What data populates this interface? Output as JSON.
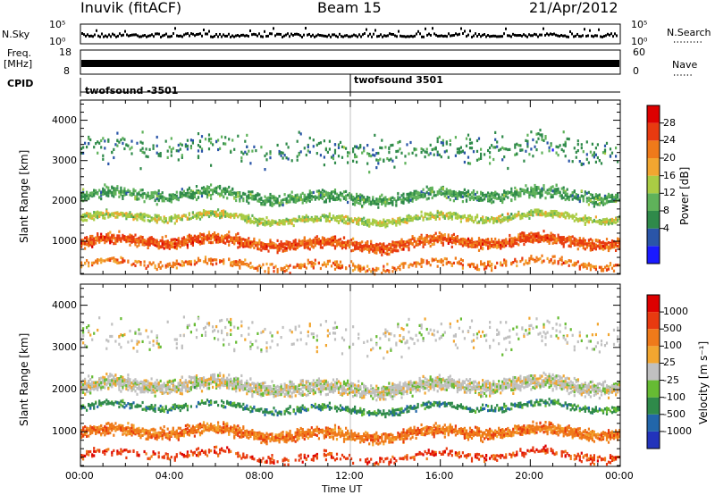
{
  "header": {
    "station": "Inuvik (fitACF)",
    "beam": "Beam 15",
    "date": "21/Apr/2012"
  },
  "small_panels": {
    "nsky_label": "N.Sky",
    "nsky_ticks": [
      "10^5",
      "10^0"
    ],
    "nsearch_label": "N.Search",
    "nsearch_ticks": [
      "10^5",
      "10^0"
    ],
    "freq_label_1": "Freq.",
    "freq_label_2": "[MHz]",
    "freq_ticks": [
      "18",
      "8"
    ],
    "nave_label": "Nave",
    "nave_ticks": [
      "60",
      "0"
    ],
    "cpid_label": "CPID",
    "cpid_entries": [
      {
        "text": "twofsound -3501",
        "x_hours": 0
      },
      {
        "text": "twofsound 3501",
        "x_hours": 12
      }
    ]
  },
  "chart_data": [
    {
      "type": "heatmap",
      "panel": "power",
      "xlabel": "",
      "ylabel": "Slant Range [km]",
      "x_range_hours": [
        0,
        24
      ],
      "ylim": [
        180,
        4500
      ],
      "y_ticks": [
        1000,
        2000,
        3000,
        4000
      ],
      "colorbar": {
        "label": "Power [dB]",
        "tick_labels": [
          "28",
          "24",
          "20",
          "16",
          "12",
          "8",
          "4"
        ],
        "levels": [
          0,
          4,
          8,
          12,
          16,
          20,
          24,
          28,
          32
        ],
        "colors": [
          "#1a1aff",
          "#2a55a8",
          "#2f8a4a",
          "#5fb25a",
          "#aacc44",
          "#f2a630",
          "#ef7a1a",
          "#e83a10",
          "#dd0000"
        ]
      },
      "bands": [
        {
          "center_km": 1000,
          "width_km": 320,
          "level": 28,
          "density": 0.9
        },
        {
          "center_km": 1600,
          "width_km": 220,
          "level": 18,
          "density": 0.7
        },
        {
          "center_km": 2150,
          "width_km": 350,
          "level": 12,
          "density": 0.55
        },
        {
          "center_km": 3300,
          "width_km": 900,
          "level": 10,
          "density": 0.08
        },
        {
          "center_km": 450,
          "width_km": 250,
          "level": 26,
          "density": 0.3
        }
      ]
    },
    {
      "type": "heatmap",
      "panel": "velocity",
      "xlabel": "Time UT",
      "ylabel": "Slant Range [km]",
      "x_range_hours": [
        0,
        24
      ],
      "x_ticks": [
        "00:00",
        "04:00",
        "08:00",
        "12:00",
        "16:00",
        "20:00",
        "00:00"
      ],
      "ylim": [
        180,
        4500
      ],
      "y_ticks": [
        1000,
        2000,
        3000,
        4000
      ],
      "colorbar": {
        "label": "Velocity [m s^-1]",
        "tick_labels": [
          "1000",
          "500",
          "100",
          "25",
          "-25",
          "-100",
          "-500",
          "-1000"
        ],
        "colors": [
          "#2233bb",
          "#2266aa",
          "#2f8a4a",
          "#66bb33",
          "#c0c0c0",
          "#f2a630",
          "#ef7a1a",
          "#e83a10",
          "#dd0000"
        ]
      },
      "bands": [
        {
          "center_km": 1000,
          "width_km": 320,
          "color_index": 6,
          "density": 0.85
        },
        {
          "center_km": 1600,
          "width_km": 200,
          "color_index": 2,
          "density": 0.55
        },
        {
          "center_km": 2100,
          "width_km": 420,
          "color_index": 4,
          "density": 0.85
        },
        {
          "center_km": 3300,
          "width_km": 900,
          "color_index": 4,
          "density": 0.07
        },
        {
          "center_km": 450,
          "width_km": 250,
          "color_index": 7,
          "density": 0.25
        }
      ]
    }
  ]
}
